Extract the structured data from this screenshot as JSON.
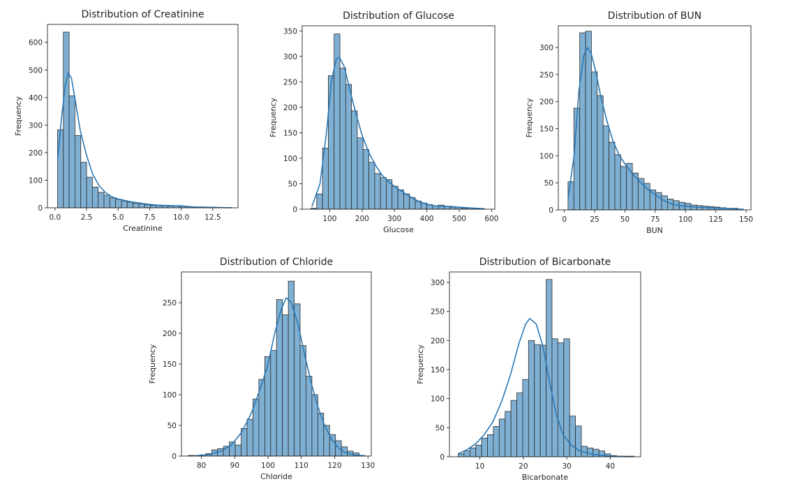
{
  "figure": {
    "style": {
      "bar_fill": "#7fb0d3",
      "bar_edge": "#2b2b2b",
      "kde_color": "#2a77b4",
      "axis_color": "#222222"
    }
  },
  "chart_data": [
    {
      "type": "bar",
      "subtype": "histogram_with_kde",
      "title": "Distribution of Creatinine",
      "xlabel": "Creatinine",
      "ylabel": "Frequency",
      "xlim": [
        -0.6,
        14.5
      ],
      "ylim": [
        0,
        665
      ],
      "xticks": [
        0.0,
        2.5,
        5.0,
        7.5,
        10.0,
        12.5
      ],
      "xtick_labels": [
        "0.0",
        "2.5",
        "5.0",
        "7.5",
        "10.0",
        "12.5"
      ],
      "yticks": [
        0,
        100,
        200,
        300,
        400,
        500,
        600
      ],
      "ytick_labels": [
        "0",
        "100",
        "200",
        "300",
        "400",
        "500",
        "600"
      ],
      "bin_start": 0.2,
      "bin_width": 0.46,
      "counts": [
        283,
        637,
        406,
        262,
        165,
        111,
        75,
        56,
        46,
        36,
        31,
        24,
        20,
        16,
        14,
        11,
        9,
        8,
        7,
        6,
        8,
        5,
        4,
        3,
        3,
        2,
        2,
        1,
        1,
        1
      ],
      "kde": [
        [
          0.2,
          170
        ],
        [
          0.5,
          320
        ],
        [
          0.8,
          440
        ],
        [
          1.05,
          490
        ],
        [
          1.3,
          470
        ],
        [
          1.6,
          390
        ],
        [
          2.0,
          280
        ],
        [
          2.5,
          190
        ],
        [
          3.0,
          120
        ],
        [
          3.5,
          80
        ],
        [
          4.0,
          55
        ],
        [
          4.5,
          40
        ],
        [
          5.0,
          32
        ],
        [
          6.0,
          22
        ],
        [
          7.0,
          15
        ],
        [
          8.0,
          10
        ],
        [
          9.0,
          8
        ],
        [
          10.0,
          7
        ],
        [
          11.0,
          3
        ],
        [
          12.0,
          2
        ],
        [
          13.0,
          1
        ],
        [
          13.9,
          0
        ]
      ]
    },
    {
      "type": "bar",
      "subtype": "histogram_with_kde",
      "title": "Distribution of Glucose",
      "xlabel": "Glucose",
      "ylabel": "Frequency",
      "xlim": [
        15,
        610
      ],
      "ylim": [
        0,
        360
      ],
      "xticks": [
        100,
        200,
        300,
        400,
        500,
        600
      ],
      "xtick_labels": [
        "100",
        "200",
        "300",
        "400",
        "500",
        "600"
      ],
      "yticks": [
        0,
        50,
        100,
        150,
        200,
        250,
        300,
        350
      ],
      "ytick_labels": [
        "0",
        "50",
        "100",
        "150",
        "200",
        "250",
        "300",
        "350"
      ],
      "bin_start": 42,
      "bin_width": 17.9,
      "counts": [
        2,
        30,
        120,
        262,
        344,
        277,
        245,
        193,
        140,
        117,
        92,
        70,
        62,
        58,
        45,
        38,
        30,
        23,
        16,
        12,
        9,
        7,
        8,
        6,
        4,
        4,
        2,
        2,
        1,
        1
      ],
      "kde": [
        [
          45,
          5
        ],
        [
          70,
          50
        ],
        [
          90,
          150
        ],
        [
          105,
          250
        ],
        [
          120,
          295
        ],
        [
          130,
          298
        ],
        [
          145,
          280
        ],
        [
          160,
          240
        ],
        [
          180,
          190
        ],
        [
          200,
          145
        ],
        [
          220,
          112
        ],
        [
          240,
          88
        ],
        [
          260,
          68
        ],
        [
          280,
          55
        ],
        [
          300,
          45
        ],
        [
          320,
          36
        ],
        [
          340,
          28
        ],
        [
          360,
          20
        ],
        [
          380,
          14
        ],
        [
          400,
          10
        ],
        [
          420,
          7
        ],
        [
          440,
          6
        ],
        [
          460,
          6
        ],
        [
          480,
          5
        ],
        [
          500,
          4
        ],
        [
          520,
          3
        ],
        [
          550,
          2
        ],
        [
          575,
          1
        ]
      ]
    },
    {
      "type": "bar",
      "subtype": "histogram_with_kde",
      "title": "Distribution of BUN",
      "xlabel": "BUN",
      "ylabel": "Frequency",
      "xlim": [
        -5,
        154
      ],
      "ylim": [
        0,
        340
      ],
      "xticks": [
        0,
        25,
        50,
        75,
        100,
        125,
        150
      ],
      "xtick_labels": [
        "0",
        "25",
        "50",
        "75",
        "100",
        "125",
        "150"
      ],
      "yticks": [
        0,
        50,
        100,
        150,
        200,
        250,
        300
      ],
      "ytick_labels": [
        "0",
        "50",
        "100",
        "150",
        "200",
        "250",
        "300"
      ],
      "bin_start": 3,
      "bin_width": 4.83,
      "counts": [
        52,
        188,
        327,
        330,
        255,
        211,
        155,
        125,
        102,
        80,
        86,
        68,
        58,
        49,
        37,
        32,
        26,
        20,
        17,
        14,
        12,
        9,
        8,
        7,
        6,
        5,
        4,
        3,
        3,
        1
      ],
      "kde": [
        [
          3,
          20
        ],
        [
          8,
          100
        ],
        [
          12,
          220
        ],
        [
          16,
          285
        ],
        [
          19,
          300
        ],
        [
          22,
          290
        ],
        [
          26,
          255
        ],
        [
          30,
          210
        ],
        [
          35,
          165
        ],
        [
          40,
          128
        ],
        [
          45,
          102
        ],
        [
          50,
          85
        ],
        [
          55,
          70
        ],
        [
          60,
          57
        ],
        [
          65,
          46
        ],
        [
          70,
          36
        ],
        [
          75,
          28
        ],
        [
          80,
          20
        ],
        [
          85,
          14
        ],
        [
          90,
          10
        ],
        [
          95,
          8
        ],
        [
          100,
          7
        ],
        [
          110,
          5
        ],
        [
          120,
          4
        ],
        [
          130,
          3
        ],
        [
          140,
          2
        ],
        [
          148,
          1
        ]
      ]
    },
    {
      "type": "bar",
      "subtype": "histogram_with_kde",
      "title": "Distribution of Chloride",
      "xlabel": "Chloride",
      "ylabel": "Frequency",
      "xlim": [
        74,
        131
      ],
      "ylim": [
        0,
        300
      ],
      "xticks": [
        80,
        90,
        100,
        110,
        120,
        130
      ],
      "xtick_labels": [
        "80",
        "90",
        "100",
        "110",
        "120",
        "130"
      ],
      "yticks": [
        0,
        50,
        100,
        150,
        200,
        250
      ],
      "ytick_labels": [
        "0",
        "50",
        "100",
        "150",
        "200",
        "250"
      ],
      "bin_start": 76,
      "bin_width": 1.77,
      "counts": [
        1,
        1,
        2,
        4,
        10,
        12,
        16,
        23,
        18,
        45,
        60,
        93,
        125,
        162,
        172,
        255,
        230,
        285,
        248,
        180,
        130,
        100,
        70,
        50,
        35,
        25,
        15,
        8,
        5,
        1
      ],
      "kde": [
        [
          78,
          0.5
        ],
        [
          82,
          2
        ],
        [
          86,
          8
        ],
        [
          89,
          18
        ],
        [
          92,
          38
        ],
        [
          95,
          70
        ],
        [
          98,
          115
        ],
        [
          100,
          150
        ],
        [
          102,
          200
        ],
        [
          104,
          240
        ],
        [
          105.5,
          258
        ],
        [
          107,
          250
        ],
        [
          109,
          215
        ],
        [
          111,
          165
        ],
        [
          113,
          118
        ],
        [
          115,
          80
        ],
        [
          117,
          50
        ],
        [
          119,
          28
        ],
        [
          121,
          14
        ],
        [
          123,
          6
        ],
        [
          126,
          2
        ],
        [
          129,
          0.5
        ]
      ]
    },
    {
      "type": "bar",
      "subtype": "histogram_with_kde",
      "title": "Distribution of Bicarbonate",
      "xlabel": "Bicarbonate",
      "ylabel": "Frequency",
      "xlim": [
        3,
        47
      ],
      "ylim": [
        0,
        318
      ],
      "xticks": [
        10,
        20,
        30,
        40
      ],
      "xtick_labels": [
        "10",
        "20",
        "30",
        "40"
      ],
      "yticks": [
        0,
        50,
        100,
        150,
        200,
        250,
        300
      ],
      "ytick_labels": [
        "0",
        "50",
        "100",
        "150",
        "200",
        "250",
        "300"
      ],
      "bin_start": 5,
      "bin_width": 1.35,
      "counts": [
        5,
        10,
        15,
        20,
        32,
        38,
        52,
        65,
        78,
        97,
        110,
        133,
        200,
        193,
        192,
        305,
        203,
        196,
        203,
        70,
        53,
        18,
        15,
        13,
        10,
        5,
        2,
        1,
        1,
        1
      ],
      "kde": [
        [
          5,
          5
        ],
        [
          7,
          12
        ],
        [
          9,
          22
        ],
        [
          11,
          38
        ],
        [
          13,
          60
        ],
        [
          15,
          95
        ],
        [
          17,
          140
        ],
        [
          19,
          195
        ],
        [
          20.5,
          228
        ],
        [
          21.5,
          238
        ],
        [
          23,
          228
        ],
        [
          24.5,
          190
        ],
        [
          26,
          130
        ],
        [
          27.5,
          75
        ],
        [
          29,
          40
        ],
        [
          31,
          20
        ],
        [
          33,
          10
        ],
        [
          36,
          4
        ],
        [
          40,
          1
        ],
        [
          44,
          0
        ]
      ]
    }
  ]
}
